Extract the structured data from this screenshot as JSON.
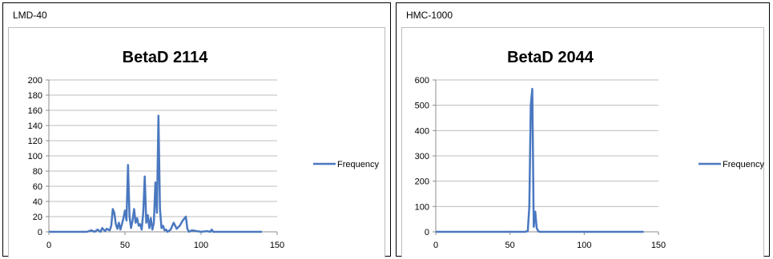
{
  "chart_data": [
    {
      "type": "line",
      "panel_label": "LMD-40",
      "title": "BetaD 2114",
      "xlabel": "",
      "ylabel": "",
      "xlim": [
        0,
        150
      ],
      "ylim": [
        0,
        200
      ],
      "x_ticks": [
        0,
        50,
        100,
        150
      ],
      "y_ticks": [
        0,
        20,
        40,
        60,
        80,
        100,
        120,
        140,
        160,
        180,
        200
      ],
      "grid": "horizontal",
      "legend_position": "right",
      "series": [
        {
          "name": "Frequency",
          "color": "#4a78c0",
          "x": [
            0,
            25,
            28,
            30,
            32,
            34,
            35,
            37,
            38,
            40,
            41,
            42,
            43,
            44,
            45,
            46,
            47,
            48,
            49,
            50,
            51,
            52,
            53,
            54,
            55,
            56,
            57,
            58,
            59,
            60,
            61,
            62,
            63,
            64,
            65,
            66,
            67,
            68,
            69,
            70,
            71,
            72,
            73,
            74,
            75,
            76,
            77,
            78,
            80,
            82,
            84,
            86,
            88,
            90,
            91,
            92,
            94,
            100,
            104,
            106,
            107,
            108,
            110,
            120,
            130,
            140
          ],
          "y": [
            0,
            0,
            2,
            0,
            3,
            0,
            5,
            1,
            4,
            2,
            8,
            30,
            25,
            10,
            4,
            12,
            3,
            10,
            18,
            28,
            15,
            88,
            20,
            5,
            15,
            30,
            12,
            18,
            8,
            10,
            3,
            25,
            73,
            12,
            22,
            5,
            18,
            3,
            12,
            65,
            25,
            153,
            30,
            5,
            8,
            2,
            3,
            0,
            3,
            12,
            4,
            8,
            15,
            20,
            4,
            0,
            2,
            0,
            1,
            0,
            3,
            0,
            0,
            0,
            0,
            0
          ]
        }
      ]
    },
    {
      "type": "line",
      "panel_label": "HMC-1000",
      "title": "BetaD 2044",
      "xlabel": "",
      "ylabel": "",
      "xlim": [
        0,
        150
      ],
      "ylim": [
        0,
        600
      ],
      "x_ticks": [
        0,
        50,
        100,
        150
      ],
      "y_ticks": [
        0,
        100,
        200,
        300,
        400,
        500,
        600
      ],
      "grid": "horizontal",
      "legend_position": "right",
      "series": [
        {
          "name": "Frequency",
          "color": "#4a78c0",
          "x": [
            0,
            55,
            60,
            62,
            63,
            64,
            65,
            66,
            67,
            68,
            69,
            70,
            72,
            80,
            100,
            120,
            140
          ],
          "y": [
            0,
            0,
            0,
            3,
            100,
            500,
            565,
            20,
            80,
            15,
            3,
            0,
            0,
            0,
            0,
            0,
            0
          ]
        }
      ]
    }
  ]
}
